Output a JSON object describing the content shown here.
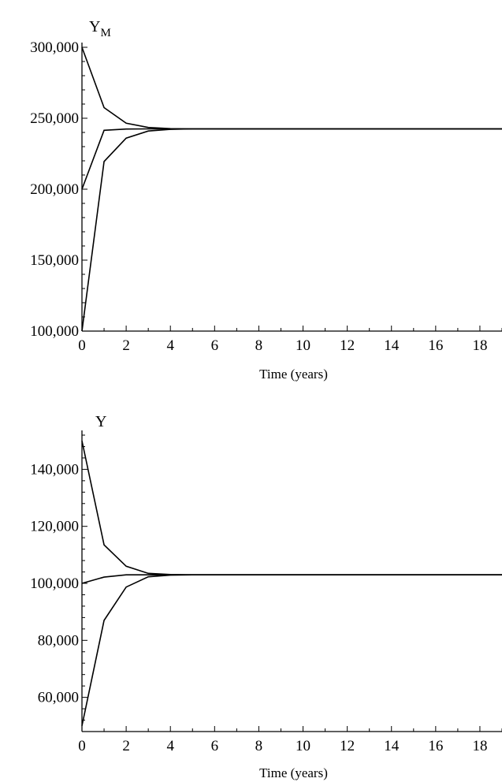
{
  "chart_data": [
    {
      "type": "line",
      "ylabel_main": "Y",
      "ylabel_sub": "M",
      "xlabel": "Time (years)",
      "x": [
        0,
        1,
        2,
        3,
        4,
        5,
        6,
        7,
        8,
        9,
        10,
        11,
        12,
        13,
        14,
        15,
        16,
        17,
        18,
        19
      ],
      "xlim": [
        0,
        19
      ],
      "ylim": [
        100000,
        300000
      ],
      "x_ticks": [
        0,
        2,
        4,
        6,
        8,
        10,
        12,
        14,
        16,
        18
      ],
      "y_ticks": [
        100000,
        150000,
        200000,
        250000,
        300000
      ],
      "y_tick_labels": [
        "100,000",
        "150,000",
        "200,000",
        "250,000",
        "300,000"
      ],
      "series": [
        {
          "values": [
            300000,
            257500,
            246500,
            243500,
            242700,
            242500,
            242500,
            242500,
            242500,
            242500,
            242500,
            242500,
            242500,
            242500,
            242500,
            242500,
            242500,
            242500,
            242500,
            242500
          ]
        },
        {
          "values": [
            200000,
            241500,
            242400,
            242500,
            242500,
            242500,
            242500,
            242500,
            242500,
            242500,
            242500,
            242500,
            242500,
            242500,
            242500,
            242500,
            242500,
            242500,
            242500,
            242500
          ]
        },
        {
          "values": [
            100000,
            219500,
            236000,
            241000,
            242200,
            242500,
            242500,
            242500,
            242500,
            242500,
            242500,
            242500,
            242500,
            242500,
            242500,
            242500,
            242500,
            242500,
            242500,
            242500
          ]
        }
      ]
    },
    {
      "type": "line",
      "ylabel_main": "Y",
      "ylabel_sub": "",
      "xlabel": "Time (years)",
      "x": [
        0,
        1,
        2,
        3,
        4,
        5,
        6,
        7,
        8,
        9,
        10,
        11,
        12,
        13,
        14,
        15,
        16,
        17,
        18,
        19
      ],
      "xlim": [
        0,
        19
      ],
      "ylim": [
        48000,
        152000
      ],
      "x_ticks": [
        0,
        2,
        4,
        6,
        8,
        10,
        12,
        14,
        16,
        18
      ],
      "y_ticks": [
        60000,
        80000,
        100000,
        120000,
        140000
      ],
      "y_tick_labels": [
        "60,000",
        "80,000",
        "100,000",
        "120,000",
        "140,000"
      ],
      "series": [
        {
          "values": [
            150000,
            113500,
            106000,
            103500,
            103100,
            103000,
            103000,
            103000,
            103000,
            103000,
            103000,
            103000,
            103000,
            103000,
            103000,
            103000,
            103000,
            103000,
            103000,
            103000
          ]
        },
        {
          "values": [
            100000,
            102200,
            103000,
            103000,
            103000,
            103000,
            103000,
            103000,
            103000,
            103000,
            103000,
            103000,
            103000,
            103000,
            103000,
            103000,
            103000,
            103000,
            103000,
            103000
          ]
        },
        {
          "values": [
            50000,
            87000,
            98700,
            102300,
            102900,
            103000,
            103000,
            103000,
            103000,
            103000,
            103000,
            103000,
            103000,
            103000,
            103000,
            103000,
            103000,
            103000,
            103000,
            103000
          ]
        }
      ]
    }
  ]
}
